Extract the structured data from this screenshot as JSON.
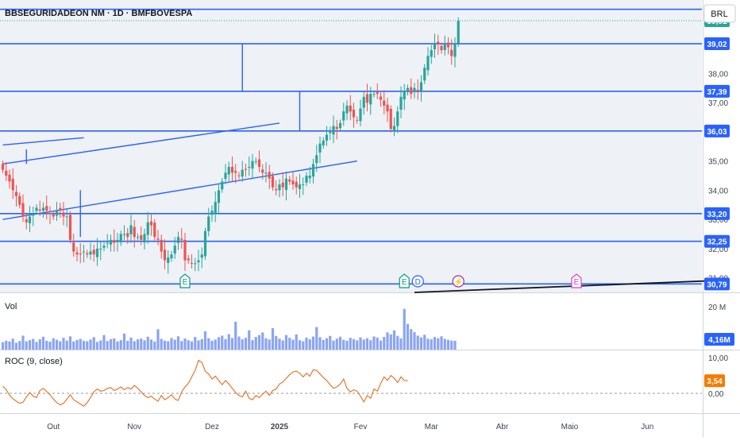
{
  "header": {
    "symbol_title": "BBSEGURIDADEON NM · 1D · BMFBOVESPA",
    "currency_button": "BRL"
  },
  "colors": {
    "up": "#26a69a",
    "down": "#ef5350",
    "trendline": "#2962ff",
    "volume": "#8aa4f5",
    "roc": "#e8772e",
    "last_price": "#26a69a",
    "roc_badge": "#f57c00"
  },
  "chart_data": [
    {
      "type": "candlestick",
      "title": "BBSEGURIDADEON NM · 1D · BMFBOVESPA",
      "ylim": [
        30.5,
        40.3
      ],
      "y_ticks": [
        {
          "label": "38,00",
          "value": 38.0
        },
        {
          "label": "37,00",
          "value": 37.0
        },
        {
          "label": "35,00",
          "value": 35.0
        },
        {
          "label": "34,00",
          "value": 34.0
        },
        {
          "label": "33,00",
          "value": 33.0
        },
        {
          "label": "32,00",
          "value": 32.0
        },
        {
          "label": "31,00",
          "value": 31.0
        }
      ],
      "x_ticks": [
        {
          "label": "Out",
          "index": 15
        },
        {
          "label": "Nov",
          "index": 39
        },
        {
          "label": "Dez",
          "index": 62
        },
        {
          "label": "2025",
          "index": 82
        },
        {
          "label": "Fev",
          "index": 106
        },
        {
          "label": "Mar",
          "index": 127
        },
        {
          "label": "Abr",
          "index": 148
        },
        {
          "label": "Maio",
          "index": 168
        },
        {
          "label": "Jun",
          "index": 191
        }
      ],
      "bar_count_total": 210,
      "closes": [
        34.7,
        34.5,
        34.3,
        34.0,
        33.8,
        33.5,
        33.1,
        32.9,
        33.1,
        33.2,
        33.4,
        33.3,
        33.4,
        33.3,
        33.2,
        33.1,
        33.3,
        33.3,
        33.1,
        33.1,
        32.3,
        31.9,
        31.8,
        31.8,
        31.9,
        31.8,
        31.9,
        31.8,
        32.0,
        32.0,
        32.1,
        32.2,
        32.3,
        32.2,
        32.3,
        32.5,
        32.5,
        32.4,
        32.8,
        32.4,
        32.4,
        32.3,
        32.5,
        32.9,
        32.8,
        32.4,
        32.3,
        31.9,
        31.6,
        31.7,
        31.8,
        32.1,
        32.4,
        32.3,
        31.6,
        31.6,
        31.5,
        31.5,
        31.6,
        31.8,
        32.6,
        33.1,
        33.3,
        33.6,
        34.0,
        34.3,
        34.6,
        34.8,
        34.6,
        34.6,
        34.5,
        34.7,
        34.7,
        34.8,
        35.0,
        35.0,
        34.8,
        34.6,
        34.6,
        34.4,
        34.1,
        34.0,
        34.2,
        34.1,
        34.4,
        34.3,
        34.2,
        34.1,
        34.2,
        34.2,
        34.5,
        34.5,
        34.9,
        35.2,
        35.6,
        35.7,
        35.9,
        36.0,
        36.2,
        36.1,
        36.3,
        36.7,
        36.9,
        36.7,
        36.5,
        36.4,
        36.8,
        37.2,
        37.0,
        37.3,
        37.3,
        37.3,
        37.1,
        36.9,
        36.7,
        36.1,
        36.2,
        36.7,
        37.2,
        37.4,
        37.5,
        37.3,
        37.5,
        37.4,
        37.7,
        38.2,
        38.6,
        38.8,
        39.0,
        39.0,
        38.8,
        39.0,
        38.9,
        38.6,
        39.0,
        39.8
      ],
      "price_levels": [
        {
          "label": "39,81",
          "value": 39.81,
          "style": "last"
        },
        {
          "label": "39,02",
          "value": 39.02,
          "style": "line"
        },
        {
          "label": "37,39",
          "value": 37.39,
          "style": "line"
        },
        {
          "label": "36,03",
          "value": 36.03,
          "style": "line"
        },
        {
          "label": "33,20",
          "value": 33.2,
          "style": "line"
        },
        {
          "label": "32,25",
          "value": 32.25,
          "style": "line"
        },
        {
          "label": "30,79",
          "value": 30.79,
          "style": "line"
        }
      ],
      "top_level": 40.2,
      "event_markers": [
        {
          "label": "E",
          "index": 54,
          "kind": "earnings"
        },
        {
          "label": "E",
          "index": 119,
          "kind": "earnings"
        },
        {
          "label": "D",
          "index": 123,
          "kind": "dividend"
        },
        {
          "label": "⚡",
          "index": 135,
          "kind": "split"
        },
        {
          "label": "E",
          "index": 170,
          "kind": "earnings"
        }
      ],
      "drawings": [
        {
          "name": "trend-channel-upper",
          "from": {
            "index": 0,
            "value": 35.55
          },
          "to": {
            "index": 24,
            "value": 35.8
          }
        },
        {
          "name": "trend-channel-lower",
          "from": {
            "index": 0,
            "value": 33.0
          },
          "to": {
            "index": 105,
            "value": 35.0
          }
        },
        {
          "name": "trend-upper-long",
          "from": {
            "index": 0,
            "value": 34.9
          },
          "to": {
            "index": 82,
            "value": 36.3
          }
        },
        {
          "name": "measure-vertical-1",
          "from": {
            "index": 7,
            "value": 35.4
          },
          "to": {
            "index": 7,
            "value": 34.9
          }
        },
        {
          "name": "measure-vertical-2",
          "from": {
            "index": 23,
            "value": 34.0
          },
          "to": {
            "index": 23,
            "value": 32.4
          }
        },
        {
          "name": "measure-vertical-3",
          "from": {
            "index": 71,
            "value": 39.02
          },
          "to": {
            "index": 71,
            "value": 37.39
          }
        },
        {
          "name": "measure-vertical-4",
          "from": {
            "index": 88,
            "value": 37.39
          },
          "to": {
            "index": 88,
            "value": 36.03
          }
        },
        {
          "name": "black-trend",
          "from": {
            "index": 122,
            "value": 30.5
          },
          "to": {
            "index": 210,
            "value": 30.9
          }
        }
      ]
    },
    {
      "type": "bar",
      "title": "Vol",
      "ylim": [
        0,
        20
      ],
      "y_ticks": [
        {
          "label": "20 M",
          "value": 20
        }
      ],
      "last_value_label": "4,16M",
      "values": [
        3.5,
        4.2,
        3.8,
        5.1,
        3.2,
        4.0,
        6.5,
        3.9,
        4.4,
        5.0,
        3.6,
        4.8,
        6.0,
        4.1,
        3.7,
        5.3,
        4.6,
        3.9,
        5.5,
        4.2,
        6.2,
        3.8,
        4.5,
        5.0,
        4.1,
        3.9,
        4.7,
        5.8,
        3.6,
        4.3,
        6.8,
        4.0,
        4.9,
        5.2,
        3.8,
        4.4,
        7.5,
        4.1,
        5.6,
        3.9,
        4.8,
        5.1,
        4.3,
        6.0,
        4.7,
        3.8,
        9.5,
        5.0,
        4.2,
        3.9,
        5.4,
        4.6,
        6.2,
        4.0,
        5.2,
        4.4,
        3.8,
        5.9,
        4.3,
        4.9,
        8.5,
        5.3,
        4.1,
        4.7,
        5.8,
        6.5,
        4.9,
        7.2,
        5.4,
        13.0,
        6.1,
        4.8,
        5.5,
        9.0,
        4.4,
        5.9,
        6.8,
        8.0,
        5.3,
        4.7,
        10.0,
        6.4,
        5.1,
        4.3,
        6.8,
        5.5,
        4.6,
        7.1,
        4.4,
        3.9,
        5.6,
        4.8,
        6.1,
        10.5,
        5.8,
        4.5,
        5.3,
        6.4,
        4.2,
        5.1,
        6.0,
        4.6,
        4.1,
        5.5,
        4.9,
        4.3,
        5.7,
        4.7,
        5.3,
        4.4,
        6.1,
        5.6,
        4.2,
        5.9,
        8.0,
        7.1,
        9.0,
        6.4,
        5.2,
        19.0,
        12.0,
        9.5,
        8.1,
        6.5,
        5.7,
        6.9,
        5.1,
        4.8,
        5.9,
        5.3,
        6.2,
        5.0,
        4.6,
        4.2,
        4.16
      ]
    },
    {
      "type": "line",
      "title": "ROC (9, close)",
      "ylim": [
        -4.5,
        10.5
      ],
      "y_ticks": [
        {
          "label": "10,00",
          "value": 10.0
        },
        {
          "label": "0,00",
          "value": 0.0
        }
      ],
      "last_value_label": "3,54",
      "values": [
        2.0,
        1.0,
        -0.5,
        -1.5,
        -2.2,
        -2.8,
        -2.5,
        -1.0,
        0.2,
        -0.8,
        -1.2,
        0.8,
        1.4,
        0.5,
        -0.4,
        -1.6,
        -2.6,
        -3.2,
        -2.8,
        -1.6,
        -0.4,
        -1.8,
        -2.4,
        -3.0,
        -3.6,
        -2.6,
        -1.2,
        0.4,
        1.2,
        0.6,
        0.8,
        1.4,
        1.6,
        0.8,
        1.2,
        1.8,
        1.0,
        1.6,
        1.2,
        2.2,
        1.4,
        0.4,
        -0.6,
        -1.2,
        -0.8,
        -1.6,
        -2.2,
        -0.6,
        -1.8,
        -1.2,
        -0.4,
        -1.6,
        -2.0,
        0.4,
        1.8,
        2.8,
        4.6,
        6.4,
        9.2,
        8.6,
        6.2,
        5.4,
        4.0,
        4.8,
        3.6,
        2.4,
        3.6,
        2.6,
        1.4,
        0.2,
        -0.6,
        -1.0,
        0.6,
        -1.4,
        -1.8,
        -0.6,
        -1.2,
        -0.2,
        0.6,
        -0.6,
        0.8,
        1.2,
        2.6,
        3.2,
        4.2,
        5.2,
        6.0,
        6.2,
        5.6,
        4.6,
        5.6,
        4.8,
        6.6,
        6.4,
        5.4,
        4.4,
        3.6,
        2.4,
        1.4,
        1.8,
        2.6,
        4.0,
        1.4,
        0.4,
        1.0,
        0.6,
        -0.8,
        -2.4,
        -0.6,
        -1.4,
        1.2,
        0.6,
        2.8,
        4.6,
        3.6,
        5.0,
        4.2,
        3.0,
        4.6,
        3.6,
        3.54
      ]
    }
  ],
  "time_axis": {
    "labels": [
      "Out",
      "Nov",
      "Dez",
      "2025",
      "Fev",
      "Mar",
      "Abr",
      "Maio",
      "Jun"
    ]
  }
}
